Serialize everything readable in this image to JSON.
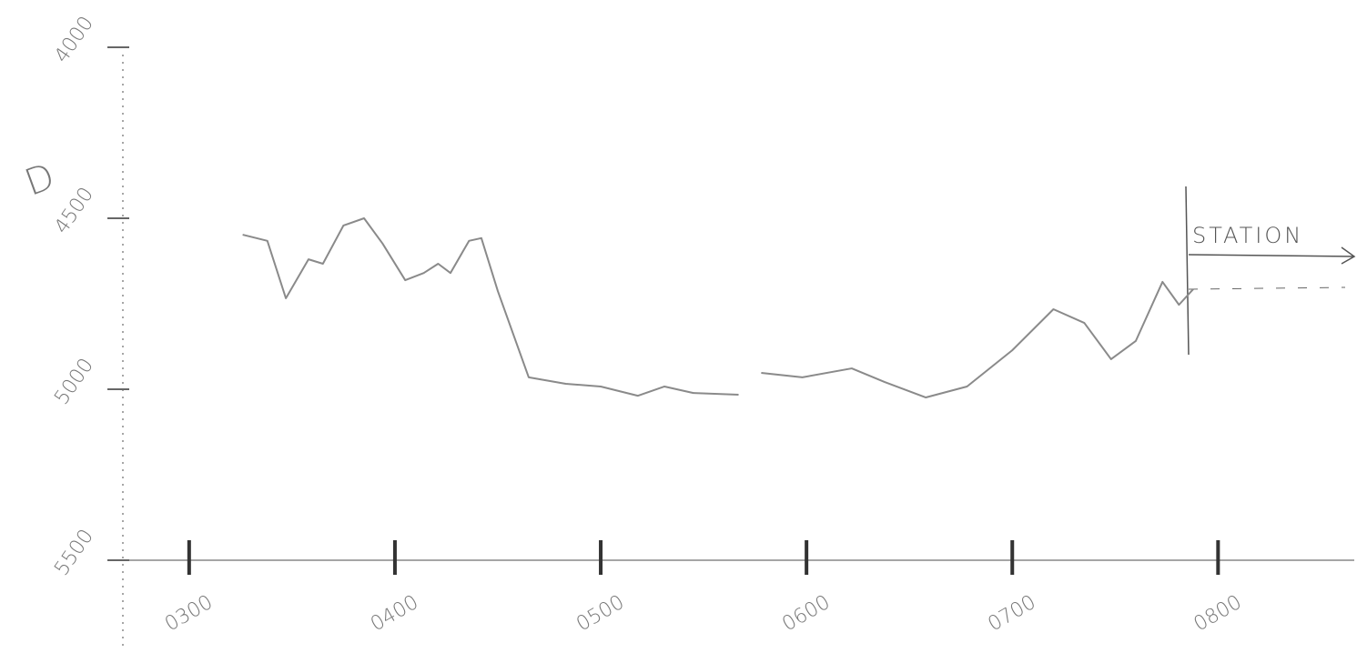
{
  "chart_data": {
    "type": "line",
    "y_label": "D",
    "annotation": "STATION",
    "x": [
      3.26,
      3.38,
      3.47,
      3.58,
      3.65,
      3.75,
      3.85,
      3.94,
      4.05,
      4.14,
      4.21,
      4.27,
      4.36,
      4.42,
      4.5,
      4.65,
      4.83,
      5.0,
      5.18,
      5.31,
      5.45,
      5.67,
      5.72,
      5.78,
      5.98,
      6.22,
      6.38,
      6.58,
      6.78,
      7.0,
      7.2,
      7.35,
      7.48,
      7.6,
      7.73,
      7.81,
      7.88
    ],
    "series": [
      {
        "color": "#8a8a8a",
        "values": [
          4548,
          4566,
          4734,
          4620,
          4633,
          4521,
          4500,
          4574,
          4681,
          4660,
          4633,
          4660,
          4566,
          4558,
          4713,
          4965,
          4984,
          4992,
          5019,
          4992,
          5011,
          5016,
          null,
          4952,
          4965,
          4939,
          4979,
          5024,
          4992,
          4886,
          4766,
          4806,
          4912,
          4859,
          4686,
          4753,
          4707
        ]
      }
    ],
    "xlim": [
      2.7,
      8.6
    ],
    "xticks": [
      {
        "value": 3,
        "label": "0300"
      },
      {
        "value": 4,
        "label": "0400"
      },
      {
        "value": 5,
        "label": "0500"
      },
      {
        "value": 6,
        "label": "0600"
      },
      {
        "value": 7,
        "label": "0700"
      },
      {
        "value": 8,
        "label": "0800"
      }
    ],
    "ylim": [
      4000,
      5500
    ],
    "yticks": [
      {
        "value": 4000,
        "label": "4000"
      },
      {
        "value": 4500,
        "label": "4500"
      },
      {
        "value": 5000,
        "label": "5000"
      },
      {
        "value": 5500,
        "label": "5500"
      }
    ],
    "y_inverted": true
  }
}
